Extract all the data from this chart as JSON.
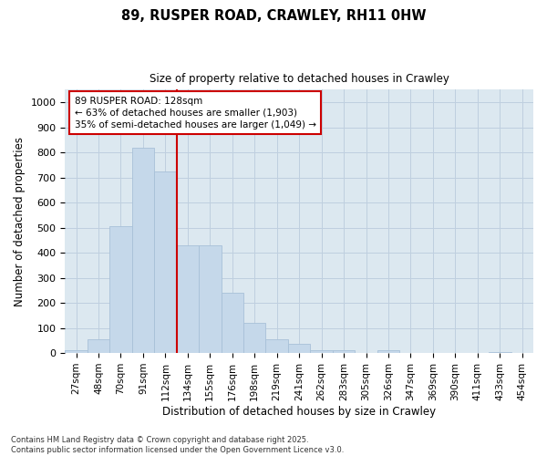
{
  "title": "89, RUSPER ROAD, CRAWLEY, RH11 0HW",
  "subtitle": "Size of property relative to detached houses in Crawley",
  "xlabel": "Distribution of detached houses by size in Crawley",
  "ylabel": "Number of detached properties",
  "bin_labels": [
    "27sqm",
    "48sqm",
    "70sqm",
    "91sqm",
    "112sqm",
    "134sqm",
    "155sqm",
    "176sqm",
    "198sqm",
    "219sqm",
    "241sqm",
    "262sqm",
    "283sqm",
    "305sqm",
    "326sqm",
    "347sqm",
    "369sqm",
    "390sqm",
    "411sqm",
    "433sqm",
    "454sqm"
  ],
  "bar_heights": [
    10,
    55,
    505,
    820,
    725,
    430,
    430,
    240,
    120,
    55,
    35,
    12,
    12,
    0,
    12,
    0,
    0,
    0,
    0,
    5,
    0
  ],
  "bar_color": "#c5d8ea",
  "bar_edge_color": "#a8c0d8",
  "grid_color": "#bfcfdf",
  "background_color": "#dce8f0",
  "vline_x_index": 4.5,
  "vline_color": "#cc0000",
  "annotation_line1": "89 RUSPER ROAD: 128sqm",
  "annotation_line2": "← 63% of detached houses are smaller (1,903)",
  "annotation_line3": "35% of semi-detached houses are larger (1,049) →",
  "annotation_box_color": "#ffffff",
  "annotation_box_edge_color": "#cc0000",
  "ylim": [
    0,
    1050
  ],
  "yticks": [
    0,
    100,
    200,
    300,
    400,
    500,
    600,
    700,
    800,
    900,
    1000
  ],
  "footer_line1": "Contains HM Land Registry data © Crown copyright and database right 2025.",
  "footer_line2": "Contains public sector information licensed under the Open Government Licence v3.0."
}
